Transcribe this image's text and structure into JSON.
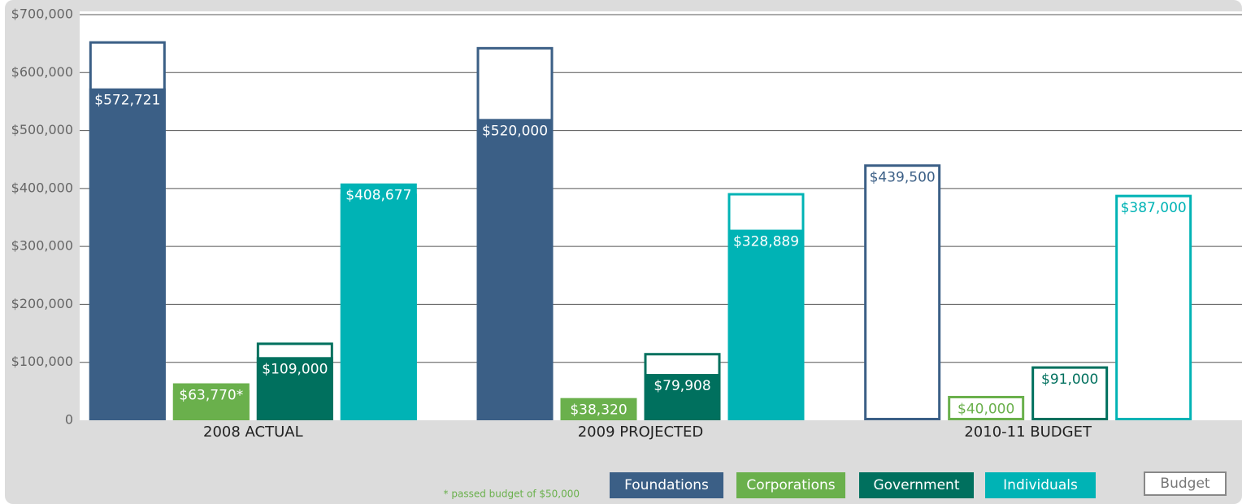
{
  "chart_data": {
    "type": "bar",
    "categories": [
      "2008 ACTUAL",
      "2009 PROJECTED",
      "2010-11 BUDGET"
    ],
    "series": [
      {
        "name": "Foundations",
        "color": "#3b5f86",
        "values": [
          572721,
          520000,
          null
        ],
        "value_labels": [
          "$572,721",
          "$520,000",
          null
        ],
        "budget": [
          652000,
          642000,
          439500
        ],
        "budget_labels": [
          null,
          null,
          "$439,500"
        ]
      },
      {
        "name": "Corporations",
        "color": "#6ab04c",
        "values": [
          63770,
          38320,
          null
        ],
        "value_labels": [
          "$63,770*",
          "$38,320",
          null
        ],
        "budget": [
          50000,
          null,
          40000
        ],
        "budget_labels": [
          null,
          null,
          "$40,000"
        ]
      },
      {
        "name": "Government",
        "color": "#00705e",
        "values": [
          109000,
          79908,
          null
        ],
        "value_labels": [
          "$109,000",
          "$79,908",
          null
        ],
        "budget": [
          132000,
          114000,
          91000
        ],
        "budget_labels": [
          null,
          null,
          "$91,000"
        ]
      },
      {
        "name": "Individuals",
        "color": "#00b3b5",
        "values": [
          408677,
          328889,
          null
        ],
        "value_labels": [
          "$408,677",
          "$328,889",
          null
        ],
        "budget": [
          389000,
          390000,
          387000
        ],
        "budget_labels": [
          null,
          null,
          "$387,000"
        ]
      }
    ],
    "budget_legend": "Budget",
    "note": "* passed budget of $50,000",
    "ylim": [
      0,
      700000
    ],
    "yticks": [
      {
        "value": 0,
        "label": "0"
      },
      {
        "value": 100000,
        "label": "$100,000"
      },
      {
        "value": 200000,
        "label": "$200,000"
      },
      {
        "value": 300000,
        "label": "$300,000"
      },
      {
        "value": 400000,
        "label": "$400,000"
      },
      {
        "value": 500000,
        "label": "$500,000"
      },
      {
        "value": 600000,
        "label": "$600,000"
      },
      {
        "value": 700000,
        "label": "$700,000"
      }
    ],
    "grid": true
  }
}
